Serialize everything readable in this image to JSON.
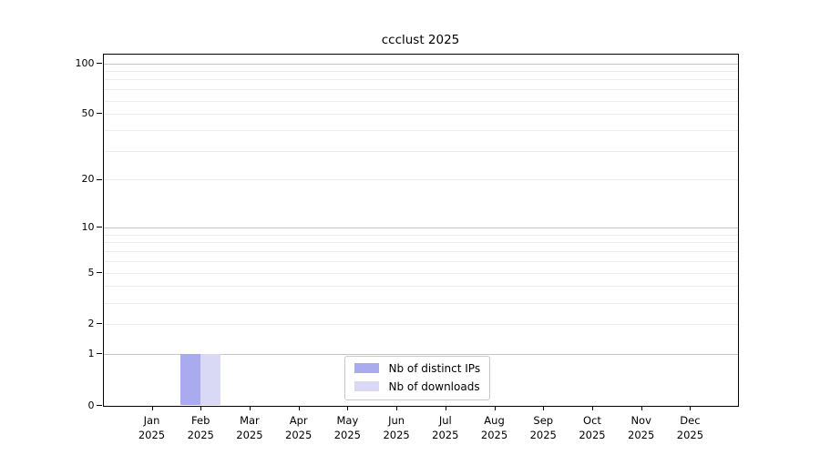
{
  "chart_data": {
    "type": "bar",
    "title": "ccclust 2025",
    "x": {
      "year": "2025",
      "categories": [
        {
          "month": "Jan",
          "year": "2025"
        },
        {
          "month": "Feb",
          "year": "2025"
        },
        {
          "month": "Mar",
          "year": "2025"
        },
        {
          "month": "Apr",
          "year": "2025"
        },
        {
          "month": "May",
          "year": "2025"
        },
        {
          "month": "Jun",
          "year": "2025"
        },
        {
          "month": "Jul",
          "year": "2025"
        },
        {
          "month": "Aug",
          "year": "2025"
        },
        {
          "month": "Sep",
          "year": "2025"
        },
        {
          "month": "Oct",
          "year": "2025"
        },
        {
          "month": "Nov",
          "year": "2025"
        },
        {
          "month": "Dec",
          "year": "2025"
        }
      ]
    },
    "series": [
      {
        "name": "Nb of distinct IPs",
        "color": "#aaaaef",
        "values": [
          0,
          1,
          0,
          0,
          0,
          0,
          0,
          0,
          0,
          0,
          0,
          0
        ]
      },
      {
        "name": "Nb of downloads",
        "color": "#d9d9f5",
        "values": [
          0,
          1,
          0,
          0,
          0,
          0,
          0,
          0,
          0,
          0,
          0,
          0
        ]
      }
    ],
    "yaxis": {
      "scale": "log1p",
      "ticks": [
        0,
        1,
        2,
        5,
        10,
        20,
        50,
        100
      ],
      "major_gridlines": [
        1,
        10,
        100
      ],
      "minor_gridlines": [
        2,
        3,
        4,
        5,
        6,
        7,
        8,
        9,
        20,
        30,
        40,
        50,
        60,
        70,
        80,
        90
      ],
      "max_tick": 100
    },
    "legend": {
      "position": "lower center"
    },
    "colors": {
      "major_grid": "#c6c6c6",
      "minor_grid": "#ececec",
      "axis": "#000000",
      "background": "#ffffff"
    }
  }
}
